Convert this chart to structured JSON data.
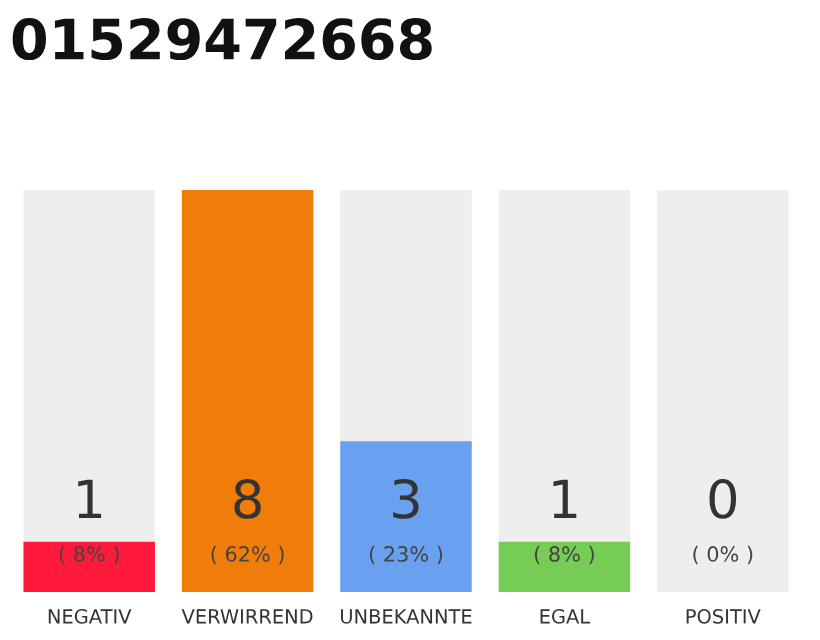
{
  "chart_data": {
    "type": "bar",
    "title": "01529472668",
    "categories": [
      "NEGATIV",
      "VERWIRREND",
      "UNBEKANNTE",
      "EGAL",
      "POSITIV"
    ],
    "values": [
      1,
      8,
      3,
      1,
      0
    ],
    "colors": [
      "#ff1a3c",
      "#f07d0a",
      "#6aa0f0",
      "#77cc55",
      "#cccccc"
    ],
    "data_labels": true,
    "bands": [
      {
        "axis": "x",
        "from": "NEGATIV",
        "to": "NEGATIV",
        "color": "#eeeeee"
      },
      {
        "axis": "x",
        "from": "UNBEKANNTE",
        "to": "UNBEKANNTE",
        "color": "#eeeeee"
      },
      {
        "axis": "x",
        "from": "EGAL",
        "to": "EGAL",
        "color": "#eeeeee"
      },
      {
        "axis": "x",
        "from": "POSITIV",
        "to": "POSITIV",
        "color": "#eeeeee"
      }
    ],
    "annotations": [
      "( 8% )",
      "( 62% )",
      "( 23% )",
      "( 8% )",
      "( 0% )"
    ]
  }
}
